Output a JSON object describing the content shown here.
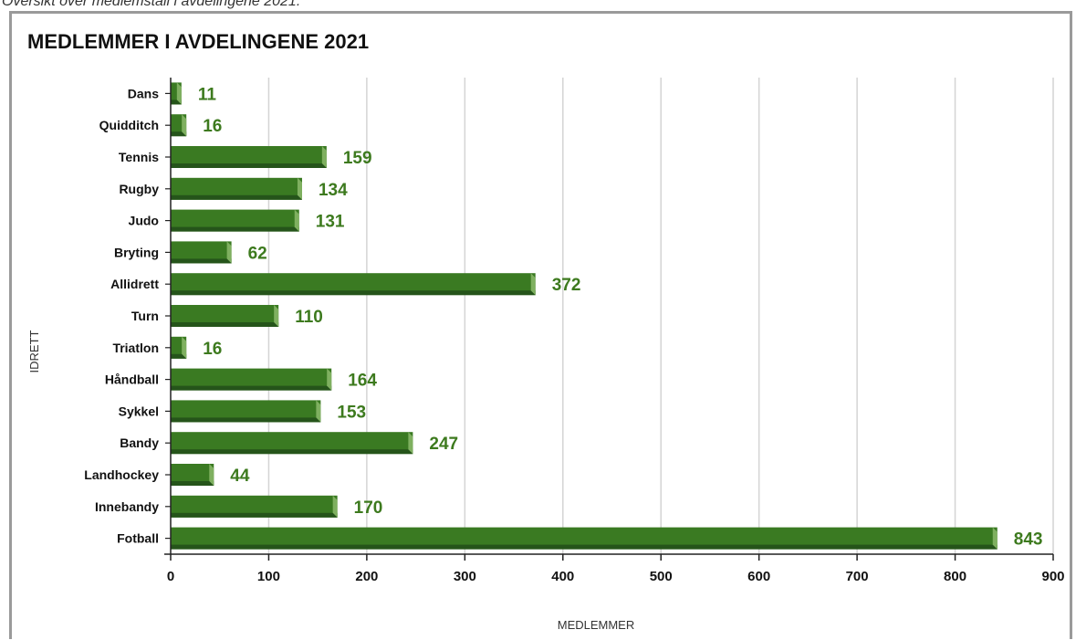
{
  "caption": "Oversikt over medlemstall i avdelingene 2021.",
  "colors": {
    "bar": "#3a7a22",
    "bar_dark": "#25541a",
    "bar_end": "#7fb060",
    "label": "#3d7a1e",
    "grid": "#d4d4d4",
    "axis": "#222222"
  },
  "chart_data": {
    "type": "bar",
    "orientation": "horizontal",
    "title": "MEDLEMMER I AVDELINGENE 2021",
    "xlabel": "MEDLEMMER",
    "ylabel": "IDRETT",
    "categories": [
      "Dans",
      "Quidditch",
      "Tennis",
      "Rugby",
      "Judo",
      "Bryting",
      "Allidrett",
      "Turn",
      "Triatlon",
      "Håndball",
      "Sykkel",
      "Bandy",
      "Landhockey",
      "Innebandy",
      "Fotball"
    ],
    "values": [
      11,
      16,
      159,
      134,
      131,
      62,
      372,
      110,
      16,
      164,
      153,
      247,
      44,
      170,
      843
    ],
    "xlim": [
      0,
      900
    ],
    "xticks": [
      0,
      100,
      200,
      300,
      400,
      500,
      600,
      700,
      800,
      900
    ],
    "grid": true,
    "legend": "none"
  }
}
